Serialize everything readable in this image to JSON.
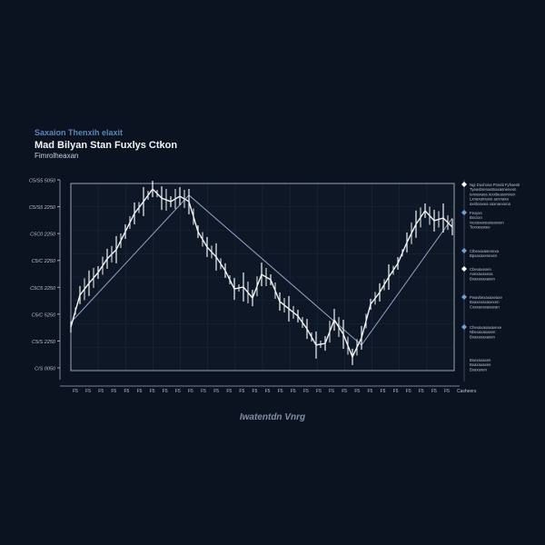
{
  "header": {
    "kicker": "Saxaion Thenxih elaxit",
    "title": "Mad Bilyan Stan Fuxlys Ctkon",
    "subtitle": "Fimrolheaxan"
  },
  "colors": {
    "background": "#0b1320",
    "price": "#f2f4f7",
    "moving_average": "#8fa3c8",
    "grid": "#1c2a3d",
    "frame": "#9aa7b6",
    "accent": "#6fa0d8"
  },
  "chart_data": {
    "type": "line",
    "title": "Mad Bilyan Stan Fuxlys Ctkon",
    "xlabel": "Iwatentdn Vnrg",
    "ylabel": "",
    "ylim": [
      0,
      700
    ],
    "grid": true,
    "legend": "right",
    "y_ticks": [
      "C5/S5 5050",
      "C5/S5 2250",
      "C5C0 2250",
      "C5/C 2250",
      "C5C5 2250",
      "C5/C 5250",
      "C5/S 2250",
      "C/S 0050"
    ],
    "x_ticks": [
      "F5",
      "F5",
      "F5",
      "F5",
      "F5",
      "F5",
      "F5",
      "F5",
      "F5",
      "F5",
      "F5",
      "F5",
      "F5",
      "F5",
      "F5",
      "F5",
      "F5",
      "F5",
      "F5",
      "F5",
      "F5",
      "F5",
      "F5",
      "F5",
      "F5",
      "F5",
      "F5",
      "F5",
      "F5",
      "F5"
    ],
    "x_end_label": "Casheers",
    "series": [
      {
        "values": [
          152,
          271,
          315,
          355,
          406,
          440,
          507,
          575,
          619,
          666,
          632,
          619,
          639,
          619,
          507,
          450,
          413,
          362,
          294,
          301,
          260,
          348,
          328,
          247,
          220,
          193,
          145,
          85,
          91,
          179,
          125,
          41,
          112,
          237,
          281,
          338,
          389,
          467,
          535,
          585,
          548,
          558,
          524
        ]
      },
      {
        "knots": [
          [
            0,
            169
          ],
          [
            13,
            643
          ],
          [
            32,
            85
          ],
          [
            42,
            558
          ]
        ]
      }
    ]
  },
  "legend": [
    {
      "marker": "diamond-white",
      "lines": [
        "Ngi Duxhosa Prasiti Fyhaesti",
        "Tyeasbrenastnaxasnenesn",
        "Ienxaxaxa Iexxbeasxnixen",
        "Lxnaxanxaxe aexnaxa",
        "axsbxaxea xaxnaexena"
      ]
    },
    {
      "marker": "diamond-blue",
      "lines": [
        "Fexyxs",
        "Bxcxxn",
        "Ixexaxaxeaxeasxen",
        "Texxaxaxee"
      ]
    },
    {
      "marker": "diamond-blue",
      "lines": [
        "Ctbexaxasenexa",
        "Bpxaxaxesexen"
      ]
    },
    {
      "marker": "diamond-white",
      "lines": [
        "Cbexaxexen",
        "Axexaxaxexa",
        "Bxaxaxaxaxen"
      ]
    },
    {
      "marker": "diamond-blue",
      "lines": [
        "Pwavbexaxaxeaxe",
        "Bxaxexaxaxexen",
        "Cxaxaxaxaxaxan"
      ]
    },
    {
      "marker": "diamond-blue",
      "lines": [
        "Chexaxaxaxaxexe",
        "Nbexaxaxaxen",
        "Bxaxaxaxaxen"
      ]
    },
    {
      "marker": "none",
      "lines": [
        "Bxexaxaxen",
        "Bxaxaxaxen",
        "Bxaxaxen"
      ]
    }
  ]
}
